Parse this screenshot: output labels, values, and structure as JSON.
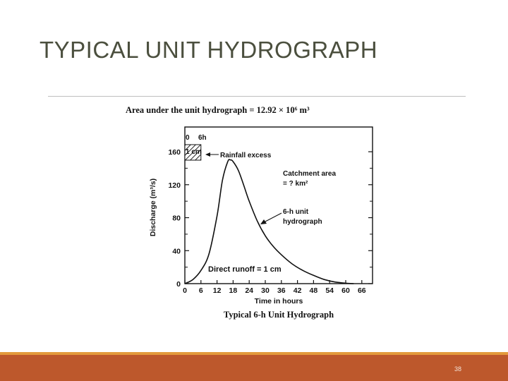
{
  "slide": {
    "title": "TYPICAL UNIT HYDROGRAPH",
    "page_number": "38"
  },
  "colors": {
    "footer_bar": "#bd582c",
    "footer_line": "#e39a3c",
    "title_text": "#4b4f3e"
  },
  "chart_data": {
    "type": "line",
    "title": "Typical 6-h Unit Hydrograph",
    "header": "Area under the unit hydrograph = 12.92 × 10⁶ m³",
    "xlabel": "Time in hours",
    "ylabel": "Discharge (m³/s)",
    "xlim": [
      0,
      70
    ],
    "ylim": [
      0,
      190
    ],
    "x_ticks": [
      0,
      6,
      12,
      18,
      24,
      30,
      36,
      42,
      48,
      54,
      60,
      66
    ],
    "y_ticks": [
      0,
      40,
      80,
      120,
      160
    ],
    "grid": false,
    "series": [
      {
        "name": "6-h unit hydrograph",
        "x": [
          0,
          3,
          6,
          9,
          12,
          14,
          16,
          17,
          18,
          20,
          22,
          24,
          27,
          30,
          33,
          36,
          40,
          44,
          48,
          52,
          56,
          60,
          63
        ],
        "y": [
          0,
          5,
          16,
          36,
          82,
          125,
          148,
          150,
          148,
          137,
          119,
          100,
          76,
          58,
          45,
          35,
          24,
          16,
          10,
          5,
          2,
          0.5,
          0
        ]
      }
    ],
    "rainfall_excess_block": {
      "x_start": 0,
      "x_end": 6,
      "depth_label": "1 cm"
    },
    "annotations": {
      "time_zero": "0",
      "time_six": "6h",
      "block_depth": "1 cm",
      "rainfall_excess": "Rainfall excess",
      "catchment_area_line1": "Catchment area",
      "catchment_area_line2": "= ? km²",
      "series_label_line1": "6-h unit",
      "series_label_line2": "hydrograph",
      "direct_runoff": "Direct runoff = 1 cm"
    }
  }
}
